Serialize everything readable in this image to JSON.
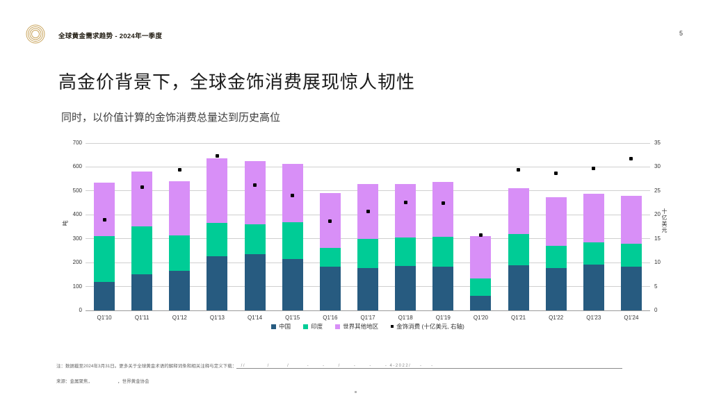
{
  "header": {
    "title": "全球黄金需求趋势 - 2024年一季度",
    "page_number": "5",
    "logo_color": "#C9A45C"
  },
  "slide": {
    "title": "高金价背景下，全球金饰消费展现惊人韧性",
    "subtitle": "同时，以价值计算的金饰消费总量达到历史高位"
  },
  "chart_data": {
    "type": "bar",
    "subtype": "stacked-bars-with-point-series",
    "categories": [
      "Q1'10",
      "Q1'11",
      "Q1'12",
      "Q1'13",
      "Q1'14",
      "Q1'15",
      "Q1'16",
      "Q1'17",
      "Q1'18",
      "Q1'19",
      "Q1'20",
      "Q1'21",
      "Q1'22",
      "Q1'23",
      "Q1'24"
    ],
    "series": [
      {
        "name": "中国",
        "color": "#275B80",
        "values": [
          120,
          152,
          167,
          226,
          235,
          216,
          182,
          176,
          185,
          182,
          62,
          190,
          176,
          192,
          182
        ]
      },
      {
        "name": "印度",
        "color": "#00CC96",
        "values": [
          192,
          200,
          148,
          140,
          124,
          152,
          78,
          123,
          120,
          127,
          73,
          130,
          94,
          94,
          97
        ]
      },
      {
        "name": "世界其他地区",
        "color": "#D88FF7",
        "values": [
          221,
          230,
          225,
          269,
          266,
          246,
          230,
          230,
          224,
          229,
          175,
          191,
          203,
          201,
          200
        ]
      }
    ],
    "points": {
      "name": "金饰消费 (十亿美元, 右轴)",
      "color": "#000000",
      "axis": "right",
      "values": [
        19.0,
        25.8,
        29.4,
        32.3,
        26.2,
        24.1,
        18.7,
        20.7,
        22.6,
        22.5,
        15.7,
        29.4,
        28.7,
        29.7,
        31.8
      ]
    },
    "left_axis": {
      "label": "吨",
      "min": 0,
      "max": 700,
      "step": 100
    },
    "right_axis": {
      "label": "十亿美元",
      "min": 0,
      "max": 35,
      "step": 5
    },
    "grid": true,
    "legend_position": "bottom"
  },
  "footnotes": {
    "note_prefix": "注：数据截至2024年3月31日。更多关于全球黄金术语的解释词条和相关注释与定义下载：",
    "note_link": "  //          /        /        -      -      /      -      -      - 4-2022/    -    -",
    "source_line": "来源：金属聚焦，                    ，世界黄金协会"
  }
}
